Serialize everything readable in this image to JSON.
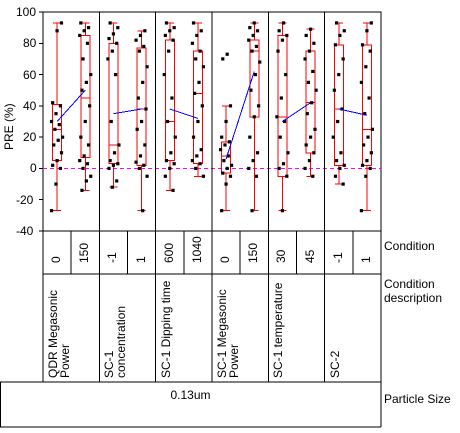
{
  "chart_data": {
    "type": "box",
    "ylabel": "PRE (%)",
    "ylim": [
      -40,
      100
    ],
    "yticks": [
      -40,
      -20,
      0,
      20,
      40,
      60,
      80,
      100
    ],
    "reference_line": 0,
    "row_labels": {
      "condition": "Condition",
      "description": "Condition description",
      "particle": "Particle Size"
    },
    "particle_size": "0.13um",
    "groups": [
      {
        "description": "QDR Megasonic Power",
        "conditions": [
          "0",
          "150"
        ]
      },
      {
        "description": "SC-1 concentration",
        "conditions": [
          "-1",
          "1"
        ]
      },
      {
        "description": "SC-1 Dipping time",
        "conditions": [
          "600",
          "1040"
        ]
      },
      {
        "description": "SC-1 Megasonic Power",
        "conditions": [
          "0",
          "150"
        ]
      },
      {
        "description": "SC-1 temperature",
        "conditions": [
          "30",
          "45"
        ]
      },
      {
        "description": "SC-2",
        "conditions": [
          "-1",
          "1"
        ]
      }
    ],
    "boxes": [
      {
        "min": -27,
        "q1": 5,
        "median": 25,
        "q3": 41,
        "max": 93,
        "mean": 30
      },
      {
        "min": -14,
        "q1": 7,
        "median": 45,
        "q3": 85,
        "max": 93,
        "mean": 50
      },
      {
        "min": -12,
        "q1": 3,
        "median": 15,
        "q3": 80,
        "max": 93,
        "mean": 35
      },
      {
        "min": -27,
        "q1": 2,
        "median": 38,
        "q3": 77,
        "max": 88,
        "mean": 38
      },
      {
        "min": -14,
        "q1": 5,
        "median": 30,
        "q3": 82,
        "max": 93,
        "mean": 38
      },
      {
        "min": -5,
        "q1": 3,
        "median": 48,
        "q3": 75,
        "max": 93,
        "mean": 32
      },
      {
        "min": -27,
        "q1": -3,
        "median": 8,
        "q3": 17,
        "max": 40,
        "mean": 6
      },
      {
        "min": -27,
        "q1": 33,
        "median": 75,
        "q3": 82,
        "max": 93,
        "mean": 62
      },
      {
        "min": -27,
        "q1": -5,
        "median": 33,
        "q3": 85,
        "max": 93,
        "mean": 30
      },
      {
        "min": -5,
        "q1": 10,
        "median": 42,
        "q3": 75,
        "max": 89,
        "mean": 42
      },
      {
        "min": -10,
        "q1": 2,
        "median": 38,
        "q3": 79,
        "max": 93,
        "mean": 38
      },
      {
        "min": -27,
        "q1": 2,
        "median": 25,
        "q3": 79,
        "max": 93,
        "mean": 34
      }
    ],
    "points": [
      [
        -27,
        -10,
        0,
        2,
        5,
        10,
        15,
        18,
        20,
        25,
        28,
        30,
        35,
        40,
        42,
        88,
        93
      ],
      [
        -14,
        -8,
        -5,
        0,
        3,
        5,
        8,
        15,
        20,
        30,
        40,
        50,
        55,
        60,
        70,
        80,
        85,
        88,
        90,
        93
      ],
      [
        -12,
        -8,
        0,
        2,
        3,
        5,
        10,
        15,
        30,
        60,
        70,
        75,
        80,
        83,
        86,
        90,
        93
      ],
      [
        -27,
        -5,
        0,
        2,
        4,
        8,
        15,
        25,
        30,
        38,
        45,
        55,
        65,
        75,
        78,
        82,
        85,
        88
      ],
      [
        -14,
        -5,
        0,
        3,
        5,
        10,
        20,
        30,
        45,
        60,
        75,
        82,
        85,
        88,
        90,
        93
      ],
      [
        -5,
        0,
        3,
        5,
        8,
        12,
        20,
        30,
        40,
        48,
        55,
        65,
        70,
        75,
        80,
        85,
        88,
        93
      ],
      [
        -27,
        -10,
        -5,
        -3,
        0,
        2,
        5,
        8,
        12,
        15,
        17,
        20,
        30,
        40,
        70,
        73
      ],
      [
        -27,
        -5,
        0,
        5,
        10,
        20,
        33,
        40,
        50,
        60,
        68,
        75,
        78,
        82,
        85,
        88,
        90,
        93
      ],
      [
        -27,
        -5,
        0,
        3,
        10,
        20,
        30,
        33,
        45,
        60,
        75,
        82,
        85,
        88,
        93
      ],
      [
        -5,
        0,
        5,
        10,
        15,
        20,
        25,
        35,
        42,
        50,
        55,
        62,
        70,
        75,
        80,
        85,
        89
      ],
      [
        -10,
        -5,
        0,
        2,
        5,
        10,
        20,
        30,
        38,
        50,
        60,
        70,
        79,
        85,
        88,
        93
      ],
      [
        -27,
        -5,
        0,
        2,
        5,
        10,
        15,
        20,
        25,
        35,
        45,
        55,
        65,
        75,
        79,
        88,
        93
      ]
    ],
    "colors": {
      "box": "#ff0000",
      "mean_line": "#0000ff",
      "points": "#000000",
      "zero_line": "#ff00ff",
      "grid": "#000000"
    }
  }
}
